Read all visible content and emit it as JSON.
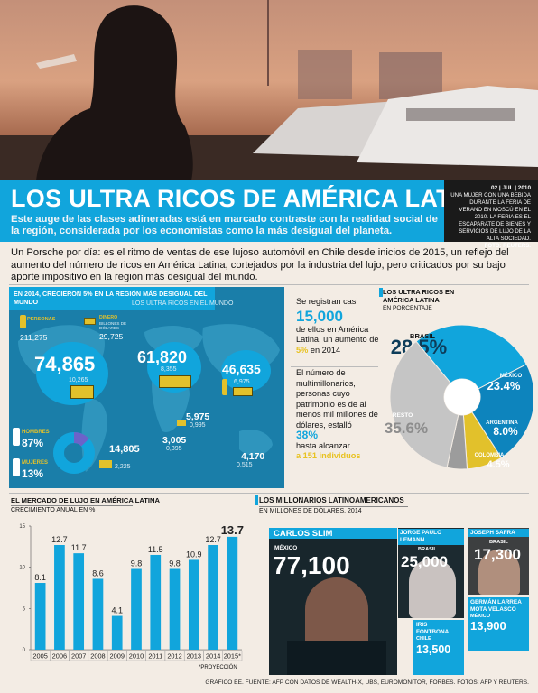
{
  "headline": "LOS ULTRA RICOS DE AMÉRICA LATINA",
  "subheadline": "Este auge de las clases adineradas está en marcado contraste con la realidad social de la región, considerada por los economistas como la más desigual del planeta.",
  "photo_caption": {
    "date": "02 | JUL | 2010",
    "text": "UNA MUJER CON UNA BEBIDA DURANTE LA FERIA DE VERANO EN MOSCÚ EN EL 2010. LA FERIA ES EL ESCAPARATE DE BIENES Y SERVICIOS DE LUJO DE LA ALTA SOCIEDAD.",
    "credit": "FOTO: REUTERS."
  },
  "intro": "Un Porsche por día: es el ritmo de ventas de ese lujoso automóvil en Chile desde inicios de 2015, un reflejo del aumento del número de ricos en América Latina, cortejados por la industria del lujo, pero criticados por su bajo aporte impositivo en la región más desigual del mundo.",
  "world": {
    "title": "EN 2014, CRECIERON 5% EN LA REGIÓN MÁS DESIGUAL DEL MUNDO",
    "subtitle": "LOS ULTRA RICOS EN EL MUNDO",
    "legend_people": "PERSONAS",
    "legend_people_value": "211,275",
    "legend_money": "DINERO",
    "legend_money_unit": "BILLONES DE DÓLARES",
    "legend_money_value": "29,725",
    "regions": [
      {
        "people": "74,865",
        "money": "10,265"
      },
      {
        "people": "61,820",
        "money": "8,355"
      },
      {
        "people": "46,635",
        "money": "6,975"
      },
      {
        "people": "5,975",
        "money": "0,995"
      },
      {
        "people": "3,005",
        "money": "0,395"
      },
      {
        "people": "14,805",
        "money": "2,225"
      },
      {
        "people": "4,170",
        "money": "0,515"
      }
    ],
    "men_label": "HOMBRES",
    "men_value": "87%",
    "women_label": "MUJERES",
    "women_value": "13%",
    "men_share": 87
  },
  "stats": {
    "p1": "Se registran casi",
    "n1": "15,000",
    "p2": "de ellos en América Latina, un aumento de",
    "pct": "5%",
    "p3": "en 2014",
    "p4": "El número de multimillonarios, personas cuyo patrimonio es de al menos mil millones de dólares, estalló",
    "n2": "38%",
    "p5": "hasta alcanzar",
    "p6": "a 151 individuos"
  },
  "pie": {
    "title": "LOS ULTRA RICOS EN AMÉRICA LATINA",
    "subtitle": "EN PORCENTAJE",
    "colors": {
      "brasil": "#11a5dc",
      "mexico": "#0d84bd",
      "argentina": "#e2c12b",
      "colombia": "#9c9c9c",
      "resto": "#c5c5c5"
    }
  },
  "chart_data": {
    "type": "bar",
    "title": "EL MERCADO DE LUJO EN AMÉRICA LATINA",
    "subtitle": "CRECIMIENTO ANUAL EN %",
    "categories": [
      "2005",
      "2006",
      "2007",
      "2008",
      "2009",
      "2010",
      "2011",
      "2012",
      "2013",
      "2014",
      "2015*"
    ],
    "values": [
      8.1,
      12.7,
      11.7,
      8.6,
      4.1,
      9.8,
      11.5,
      9.8,
      10.9,
      12.7,
      13.7
    ],
    "labels": [
      "8.1",
      "12.7",
      "11.7",
      "8.6",
      "4.1",
      "9.8",
      "11.5",
      "9.8",
      "10.9",
      "12.7",
      "13.7"
    ],
    "ylim": [
      0,
      15
    ],
    "yticks": [
      "0",
      "5",
      "10",
      "15"
    ],
    "grid": false,
    "color": "#11a5dc",
    "footnote": "*PROYECCIÓN",
    "pie": {
      "type": "pie",
      "slices": [
        {
          "name": "BRASIL",
          "value": 28.5,
          "label": "28.5%"
        },
        {
          "name": "MÉXICO",
          "value": 23.4,
          "label": "23.4%"
        },
        {
          "name": "ARGENTINA",
          "value": 8.0,
          "label": "8.0%"
        },
        {
          "name": "COLOMBIA",
          "value": 4.5,
          "label": "4.5%"
        },
        {
          "name": "RESTO",
          "value": 35.6,
          "label": "35.6%"
        }
      ]
    }
  },
  "millonarios": {
    "title": "LOS MILLONARIOS LATINOAMERICANOS",
    "subtitle": "EN MILLONES DE DÓLARES, 2014",
    "people": [
      {
        "name": "CARLOS SLIM",
        "country": "MÉXICO",
        "value": "77,100"
      },
      {
        "name": "JORGE PAULO LEMANN",
        "country": "BRASIL",
        "value": "25,000"
      },
      {
        "name": "JOSEPH SAFRA",
        "country": "BRASIL",
        "value": "17,300"
      },
      {
        "name": "IRIS FONTBONA",
        "country": "CHILE",
        "value": "13,500"
      },
      {
        "name": "GERMÁN LARREA MOTA VELASCO",
        "country": "MÉXICO",
        "value": "13,900"
      }
    ]
  },
  "footer": "GRÁFICO EE. FUENTE: AFP CON DATOS DE WEALTH-X, UBS, EUROMONITOR, FORBES. FOTOS: AFP Y REUTERS."
}
